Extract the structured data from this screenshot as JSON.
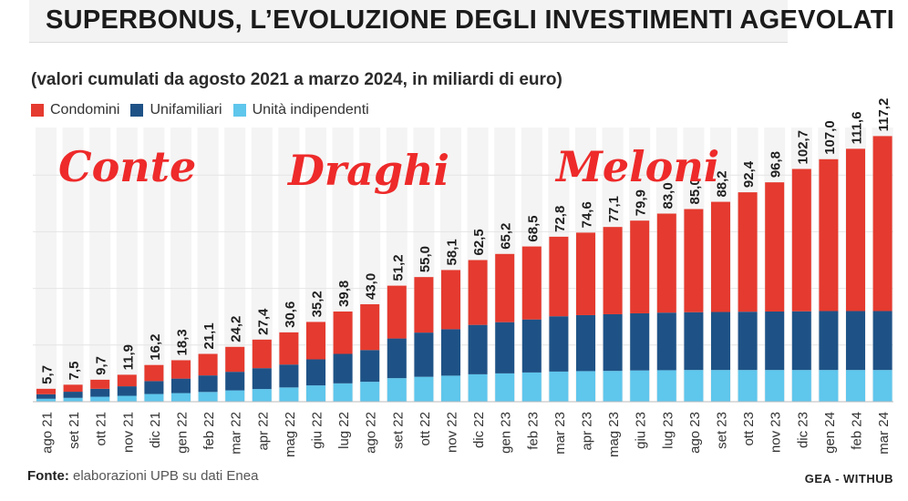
{
  "header": {
    "title": "SUPERBONUS, L’EVOLUZIONE DEGLI INVESTIMENTI AGEVOLATI",
    "subtitle": "(valori cumulati da agosto 2021 a marzo 2024, in miliardi di euro)"
  },
  "legend": {
    "items": [
      {
        "label": "Condomini",
        "color": "#e53a2f"
      },
      {
        "label": "Unifamiliari",
        "color": "#1e5286"
      },
      {
        "label": "Unità indipendenti",
        "color": "#5fc6ec"
      }
    ]
  },
  "annotations": {
    "conte": "Conte",
    "draghi": "Draghi",
    "meloni": "Meloni"
  },
  "footer": {
    "source_label": "Fonte:",
    "source_text": " elaborazioni UPB su dati Enea",
    "credit": "GEA - WITHUB"
  },
  "chart_data": {
    "type": "bar",
    "stacked": true,
    "categories": [
      "ago 21",
      "set 21",
      "ott 21",
      "nov 21",
      "dic 21",
      "gen 22",
      "feb 22",
      "mar 22",
      "apr 22",
      "mag 22",
      "giu 22",
      "lug 22",
      "ago 22",
      "set 22",
      "ott 22",
      "nov 22",
      "dic 22",
      "gen 23",
      "feb 23",
      "mar 23",
      "apr 23",
      "mag 23",
      "giu 23",
      "lug 23",
      "ago 23",
      "set 23",
      "ott 23",
      "nov 23",
      "dic 23",
      "gen 24",
      "feb 24",
      "mar 24"
    ],
    "totals": [
      5.7,
      7.5,
      9.7,
      11.9,
      16.2,
      18.3,
      21.1,
      24.2,
      27.4,
      30.6,
      35.2,
      39.8,
      43.0,
      51.2,
      55.0,
      58.1,
      62.5,
      65.2,
      68.5,
      72.8,
      74.6,
      77.1,
      79.9,
      83.0,
      85.0,
      88.2,
      92.4,
      96.8,
      102.7,
      107.0,
      111.6,
      117.2
    ],
    "total_labels": [
      "5,7",
      "7,5",
      "9,7",
      "11,9",
      "16,2",
      "18,3",
      "21,1",
      "24,2",
      "27,4",
      "30,6",
      "35,2",
      "39,8",
      "43,0",
      "51,2",
      "55,0",
      "58,1",
      "62,5",
      "65,2",
      "68,5",
      "72,8",
      "74,6",
      "77,1",
      "79,9",
      "83,0",
      "85,0",
      "88,2",
      "92,4",
      "96,8",
      "102,7",
      "107,0",
      "111,6",
      "117,2"
    ],
    "series": [
      {
        "name": "Unità indipendenti",
        "color": "#5fc6ec",
        "values": [
          1.3,
          1.7,
          2.2,
          2.6,
          3.4,
          3.8,
          4.3,
          5.0,
          5.6,
          6.3,
          7.2,
          8.1,
          8.8,
          10.4,
          11.0,
          11.5,
          12.1,
          12.5,
          12.9,
          13.3,
          13.5,
          13.6,
          13.8,
          13.9,
          14.0,
          14.0,
          14.0,
          14.0,
          14.0,
          14.0,
          14.0,
          14.0
        ]
      },
      {
        "name": "Unifamiliari",
        "color": "#1e5286",
        "values": [
          2.0,
          2.7,
          3.5,
          4.2,
          5.7,
          6.4,
          7.3,
          8.2,
          9.2,
          10.1,
          11.5,
          13.0,
          14.0,
          17.5,
          19.5,
          20.5,
          21.8,
          22.6,
          23.4,
          24.4,
          24.7,
          25.0,
          25.2,
          25.4,
          25.5,
          25.6,
          25.7,
          25.8,
          25.9,
          26.0,
          26.0,
          26.0
        ]
      },
      {
        "name": "Condomini",
        "color": "#e53a2f",
        "values": [
          2.4,
          3.1,
          4.0,
          5.1,
          7.1,
          8.1,
          9.5,
          11.0,
          12.6,
          14.2,
          16.5,
          18.7,
          20.2,
          23.3,
          24.5,
          26.1,
          28.6,
          30.1,
          32.2,
          35.1,
          36.4,
          38.5,
          40.9,
          43.7,
          45.5,
          48.6,
          52.7,
          57.0,
          62.8,
          67.0,
          71.6,
          77.2
        ]
      }
    ],
    "ylim": [
      0,
      125
    ]
  }
}
